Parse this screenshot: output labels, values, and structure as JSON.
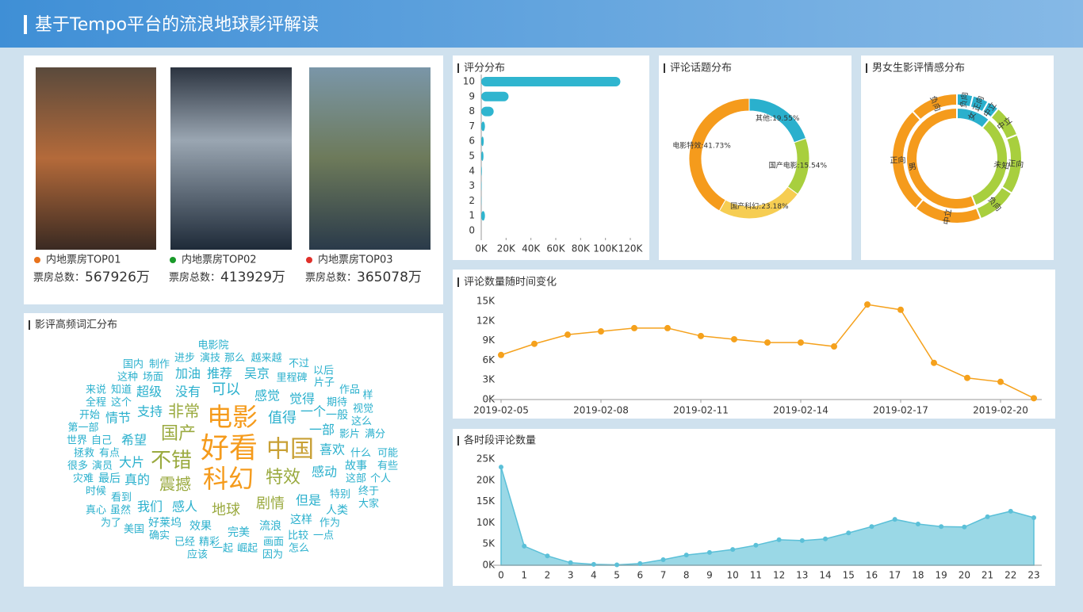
{
  "title": "基于Tempo平台的流浪地球影评解读",
  "movies": [
    {
      "label": "内地票房TOP01",
      "color": "#e8731c",
      "box_office_label": "票房总数：",
      "box_office": "567926万"
    },
    {
      "label": "内地票房TOP02",
      "color": "#1a9a2a",
      "box_office_label": "票房总数：",
      "box_office": "413929万"
    },
    {
      "label": "内地票房TOP03",
      "color": "#e0302a",
      "box_office_label": "票房总数：",
      "box_office": "365078万"
    }
  ],
  "word_cloud": {
    "title": "影评高频词汇分布",
    "words": [
      "电影院",
      "进步",
      "演技",
      "那么",
      "越来越",
      "不过",
      "国内",
      "制作",
      "以后",
      "这种",
      "场面",
      "加油",
      "推荐",
      "吴京",
      "里程碑",
      "片子",
      "来说",
      "知道",
      "作品",
      "超级",
      "没有",
      "可以",
      "感觉",
      "觉得",
      "样",
      "全程",
      "这个",
      "期待",
      "视觉",
      "非常",
      "电影",
      "值得",
      "一个",
      "一般",
      "开始",
      "情节",
      "支持",
      "这么",
      "第一部",
      "一部",
      "影片",
      "满分",
      "国产",
      "世界",
      "自己",
      "希望",
      "好看",
      "中国",
      "喜欢",
      "拯救",
      "有点",
      "什么",
      "可能",
      "不错",
      "大片",
      "很多",
      "演员",
      "故事",
      "有些",
      "感动",
      "灾难",
      "最后",
      "真的",
      "科幻",
      "特效",
      "这部",
      "个人",
      "震撼",
      "时候",
      "特别",
      "终于",
      "看到",
      "真心",
      "虽然",
      "我们",
      "感人",
      "地球",
      "剧情",
      "但是",
      "人类",
      "大家",
      "为了",
      "美国",
      "好莱坞",
      "效果",
      "完美",
      "流浪",
      "这样",
      "作为",
      "确实",
      "已经",
      "精彩",
      "画面",
      "比较",
      "一点",
      "一起",
      "崛起",
      "怎么",
      "应该",
      "因为"
    ]
  },
  "chart_data": [
    {
      "type": "hbar",
      "title": "评分分布",
      "categories": [
        "10",
        "9",
        "8",
        "7",
        "6",
        "5",
        "4",
        "3",
        "2",
        "1",
        "0"
      ],
      "values": [
        112000,
        22000,
        10000,
        3000,
        2000,
        1800,
        500,
        300,
        200,
        3000,
        0
      ],
      "color": "#2fb5cf",
      "xlim": [
        0,
        120000
      ],
      "xticks": [
        {
          "value": 0,
          "label": "0K"
        },
        {
          "value": 20000,
          "label": "20K"
        },
        {
          "value": 40000,
          "label": "40K"
        },
        {
          "value": 60000,
          "label": "60K"
        },
        {
          "value": 80000,
          "label": "80K"
        },
        {
          "value": 100000,
          "label": "100K"
        },
        {
          "value": 120000,
          "label": "120K"
        }
      ]
    },
    {
      "type": "donut",
      "title": "评论话题分布",
      "values": [
        19.55,
        15.54,
        23.18,
        41.73
      ],
      "value_labels": [
        "其他:19.55%",
        "国产电影:15.54%",
        "国产科幻:23.18%",
        "电影特效:41.73%"
      ],
      "colors": [
        "#2ab0cd",
        "#a8cf3e",
        "#f6cd52",
        "#f59b1c"
      ]
    },
    {
      "type": "sunburst",
      "title": "男女生影评情感分布",
      "inner": {
        "categories": [
          "女",
          "未知",
          "男"
        ],
        "values": [
          11,
          33,
          56
        ],
        "colors": [
          "#2ab0cd",
          "#a8cf3e",
          "#f59b1c"
        ]
      },
      "outer": {
        "categories": [
          "负向",
          "正向",
          "中立",
          "中立",
          "正向",
          "负向",
          "中立",
          "正向",
          "负向"
        ],
        "parents": [
          0,
          0,
          0,
          1,
          1,
          1,
          2,
          2,
          2
        ],
        "values": [
          4,
          4,
          3,
          8,
          15,
          10,
          17,
          27,
          12
        ]
      }
    },
    {
      "type": "line",
      "title": "评论数量随时间变化",
      "color": "#f5a11c",
      "x": [
        "2019-02-05",
        "2019-02-06",
        "2019-02-07",
        "2019-02-08",
        "2019-02-09",
        "2019-02-10",
        "2019-02-11",
        "2019-02-12",
        "2019-02-13",
        "2019-02-14",
        "2019-02-15",
        "2019-02-16",
        "2019-02-17",
        "2019-02-18",
        "2019-02-19",
        "2019-02-20",
        "2019-02-21"
      ],
      "values": [
        6800,
        8500,
        9900,
        10400,
        10900,
        10900,
        9700,
        9200,
        8700,
        8700,
        8100,
        14500,
        13700,
        5600,
        3300,
        2700,
        200
      ],
      "xlim": [
        "2019-02-05",
        "2019-02-21"
      ],
      "xticks": [
        "2019-02-05",
        "2019-02-08",
        "2019-02-11",
        "2019-02-14",
        "2019-02-17",
        "2019-02-20"
      ],
      "ylim": [
        0,
        15000
      ],
      "yticks": [
        {
          "value": 0,
          "label": "0K"
        },
        {
          "value": 3000,
          "label": "3K"
        },
        {
          "value": 6000,
          "label": "6K"
        },
        {
          "value": 9000,
          "label": "9K"
        },
        {
          "value": 12000,
          "label": "12K"
        },
        {
          "value": 15000,
          "label": "15K"
        }
      ]
    },
    {
      "type": "area",
      "title": "各时段评论数量",
      "color": "#5bc0d8",
      "fill": "#9ad8e6",
      "x": [
        0,
        1,
        2,
        3,
        4,
        5,
        6,
        7,
        8,
        9,
        10,
        11,
        12,
        13,
        14,
        15,
        16,
        17,
        18,
        19,
        20,
        21,
        22,
        23
      ],
      "values": [
        23100,
        4500,
        2200,
        600,
        200,
        100,
        400,
        1300,
        2400,
        3000,
        3700,
        4700,
        6000,
        5800,
        6200,
        7600,
        9100,
        10800,
        9700,
        9100,
        9000,
        11400,
        12700,
        11200
      ],
      "xlim": [
        0,
        23
      ],
      "ylim": [
        0,
        25000
      ],
      "yticks": [
        {
          "value": 0,
          "label": "0K"
        },
        {
          "value": 5000,
          "label": "5K"
        },
        {
          "value": 10000,
          "label": "10K"
        },
        {
          "value": 15000,
          "label": "15K"
        },
        {
          "value": 20000,
          "label": "20K"
        },
        {
          "value": 25000,
          "label": "25K"
        }
      ]
    }
  ]
}
